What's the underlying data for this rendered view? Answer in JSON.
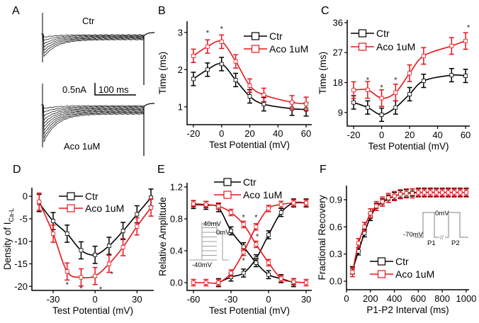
{
  "colors": {
    "ctr": "#000000",
    "aco": "#e8141c",
    "inset": "#808080"
  },
  "panel_a": {
    "label": "A",
    "ctr_label": "Ctr",
    "aco_label": "Aco 1uM",
    "scale_current": "0.5nA",
    "scale_time": "100 ms"
  },
  "chart_data": [
    {
      "id": "B",
      "label": "B",
      "type": "line",
      "xlabel": "Test Potential (mV)",
      "ylabel": "Time (ms)",
      "xlim": [
        -24.5,
        64
      ],
      "ylim": [
        0.52,
        3.3
      ],
      "xticks": [
        -20,
        0,
        20,
        40,
        60
      ],
      "yticks": [
        1,
        2,
        3
      ],
      "x": [
        -20,
        -10,
        0,
        10,
        20,
        30,
        50,
        60
      ],
      "series": [
        {
          "name": "Ctr",
          "color": "#000000",
          "values": [
            1.75,
            2.0,
            2.15,
            1.72,
            1.28,
            1.07,
            0.95,
            0.93
          ],
          "err": 0.18
        },
        {
          "name": "Aco 1uM",
          "color": "#e8141c",
          "values": [
            2.37,
            2.62,
            2.75,
            2.22,
            1.57,
            1.32,
            1.12,
            1.08
          ],
          "err": 0.18
        }
      ],
      "stars": [
        {
          "x": -10,
          "y": 3.0
        },
        {
          "x": 0,
          "y": 3.1
        }
      ]
    },
    {
      "id": "C",
      "label": "C",
      "type": "line",
      "xlabel": "Test Potential (mV)",
      "ylabel": "Time (ms)",
      "xlim": [
        -24.6,
        63
      ],
      "ylim": [
        4.9,
        36.85
      ],
      "xticks": [
        -20,
        0,
        20,
        40,
        60
      ],
      "yticks": [
        9,
        18,
        27,
        36
      ],
      "x": [
        -20,
        -10,
        0,
        10,
        20,
        30,
        50,
        60
      ],
      "series": [
        {
          "name": "Ctr",
          "color": "#000000",
          "values": [
            12.0,
            10.5,
            8.3,
            10.5,
            14.5,
            18.5,
            20.2,
            20.0
          ],
          "err": 2.0
        },
        {
          "name": "Aco 1uM",
          "color": "#e8141c",
          "values": [
            15.7,
            15.8,
            13.3,
            15.0,
            20.8,
            26.0,
            29.0,
            30.5
          ],
          "err": 2.5
        }
      ],
      "stars": [
        {
          "x": -10,
          "y": 18.8
        },
        {
          "x": 0,
          "y": 16.6
        },
        {
          "x": 10,
          "y": 18.8
        },
        {
          "x": 62,
          "y": 34.6
        }
      ]
    },
    {
      "id": "D",
      "label": "D",
      "type": "line",
      "xlabel": "Test Potential (mV)",
      "ylabel": "Density of I",
      "ylabel_sub": "Ca-L",
      "xlim": [
        -45.2,
        42
      ],
      "ylim": [
        -20.9,
        1.9
      ],
      "xticks": [
        -30,
        0,
        30
      ],
      "yticks": [
        0,
        -5,
        -10,
        -15,
        -20
      ],
      "x": [
        -40,
        -30,
        -20,
        -10,
        0,
        10,
        20,
        30,
        40
      ],
      "series": [
        {
          "name": "Ctr",
          "color": "#000000",
          "values": [
            -1.5,
            -5.5,
            -8.3,
            -12.0,
            -13.0,
            -11.0,
            -7.7,
            -4.0,
            -0.3
          ],
          "err": 1.9
        },
        {
          "name": "Aco 1uM",
          "color": "#e8141c",
          "values": [
            -1.2,
            -8.3,
            -16.7,
            -18.0,
            -17.7,
            -15.0,
            -11.3,
            -6.7,
            -2.5
          ],
          "err": 1.9
        }
      ],
      "stars": [
        {
          "x": -20,
          "y": -19.6
        },
        {
          "x": -10,
          "y": -20.4
        },
        {
          "x": 4,
          "y": -20.6
        },
        {
          "x": 12,
          "y": -17.2
        }
      ]
    },
    {
      "id": "E",
      "label": "E",
      "type": "line",
      "xlabel": "Test Potential (mV)",
      "ylabel": "Relative Amplitude",
      "xlim": [
        -65.1,
        34.5
      ],
      "ylim": [
        -0.098,
        1.253
      ],
      "xticks": [
        -60,
        -30,
        0,
        30
      ],
      "yticks": [
        "0.0",
        "0.4",
        "0.8",
        "1.2"
      ],
      "x": [
        -60,
        -50,
        -40,
        -30,
        -20,
        -10,
        0,
        10,
        20,
        30
      ],
      "series": [
        {
          "name": "Ctr",
          "color": "#000000",
          "values": [
            null,
            null,
            0.0,
            0.07,
            0.12,
            0.3,
            0.6,
            0.88,
            1.0,
            1.0
          ],
          "err": 0.05
        },
        {
          "name": "Ctr",
          "color": "#000000",
          "values": [
            0.98,
            0.97,
            0.94,
            0.65,
            0.45,
            0.25,
            0.1,
            0.05,
            0.0,
            null
          ],
          "err": 0.05
        },
        {
          "name": "Aco 1uM",
          "color": "#e8141c",
          "values": [
            0.0,
            0.0,
            0.0,
            0.12,
            0.38,
            0.7,
            0.93,
            0.98,
            1.0,
            1.0
          ],
          "err": 0.04
        },
        {
          "name": "Aco 1uM",
          "color": "#e8141c",
          "values": [
            0.99,
            0.98,
            0.96,
            0.88,
            0.73,
            0.48,
            0.25,
            0.05,
            0.01,
            0.0
          ],
          "err": 0.04
        }
      ],
      "stars": [
        {
          "x": -20,
          "y": 0.82
        },
        {
          "x": -10,
          "y": 0.82
        },
        {
          "x": -9,
          "y": 0.58
        },
        {
          "x": -20,
          "y": 0.28
        }
      ],
      "inset": {
        "v_high": "40mV",
        "v_test": "0mV",
        "v_hold": "-40mV"
      }
    },
    {
      "id": "F",
      "label": "F",
      "type": "line",
      "xlabel": "P1-P2 Interval (ms)",
      "ylabel": "Fractional Recovery",
      "xlim": [
        0,
        1024
      ],
      "ylim": [
        -0.094,
        1.056
      ],
      "xticks": [
        0,
        200,
        400,
        600,
        800,
        1000
      ],
      "yticks": [
        "0.0",
        "0.3",
        "0.6",
        "0.9"
      ],
      "x": [
        50,
        100,
        150,
        200,
        250,
        300,
        350,
        400,
        450,
        500,
        550,
        600,
        650,
        700,
        750,
        800,
        850,
        900,
        950,
        1000
      ],
      "series": [
        {
          "name": "Ctr",
          "color": "#000000",
          "values": [
            0.12,
            0.33,
            0.53,
            0.71,
            0.82,
            0.87,
            0.91,
            0.94,
            0.96,
            0.97,
            0.98,
            0.98,
            0.98,
            0.98,
            0.98,
            0.98,
            0.98,
            0.98,
            0.98,
            0.98
          ],
          "err": 0.04
        },
        {
          "name": "Aco 1uM",
          "color": "#e8141c",
          "values": [
            0.1,
            0.42,
            0.6,
            0.75,
            0.83,
            0.88,
            0.92,
            0.94,
            0.96,
            0.97,
            0.97,
            0.98,
            0.98,
            0.98,
            0.98,
            0.98,
            0.98,
            0.98,
            0.98,
            0.98
          ],
          "err": 0.05
        }
      ],
      "stars": [],
      "inset": {
        "v_test": "0mV",
        "v_hold": "-70mV",
        "p1": "P1",
        "p2": "P2"
      }
    }
  ]
}
